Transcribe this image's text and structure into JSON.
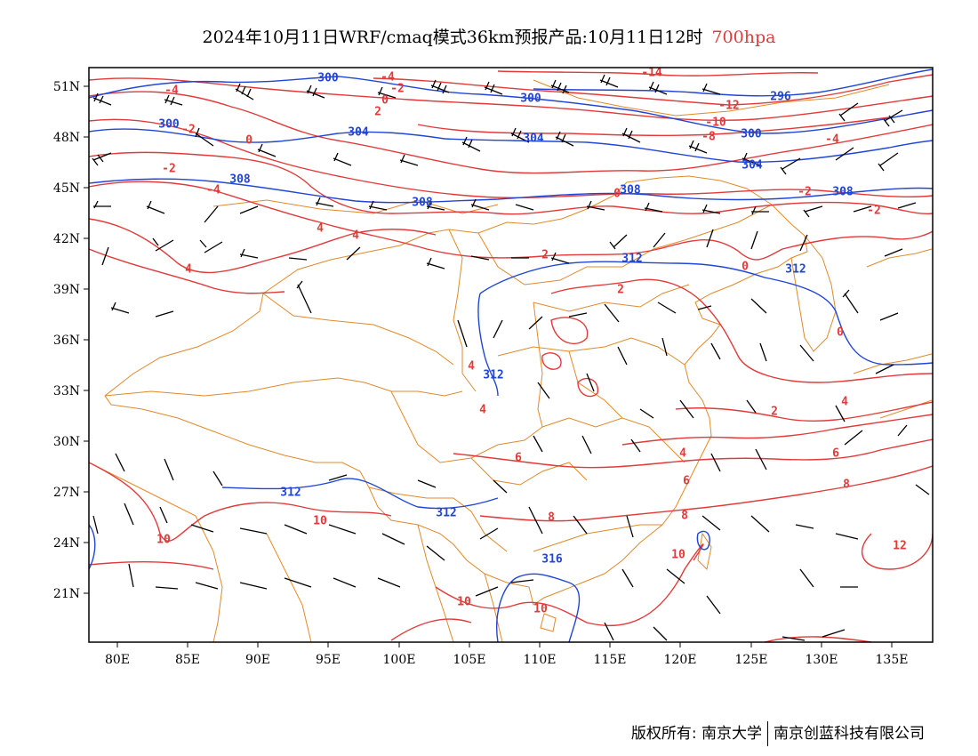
{
  "header": {
    "title": "2024年10月11日WRF/cmaq模式36km预报产品:10月11日12时",
    "level": "700hpa"
  },
  "colors": {
    "temperature": "#e23a3a",
    "height": "#2146d6",
    "boundary": "#e08a2a",
    "wind": "#000000"
  },
  "axes": {
    "lat_labels": [
      "51N",
      "48N",
      "45N",
      "42N",
      "39N",
      "36N",
      "33N",
      "30N",
      "27N",
      "24N",
      "21N"
    ],
    "lon_labels": [
      "80E",
      "85E",
      "90E",
      "95E",
      "100E",
      "105E",
      "110E",
      "115E",
      "120E",
      "125E",
      "130E",
      "135E"
    ]
  },
  "contour_labels": {
    "temperature": [
      "-14",
      "-12",
      "-10",
      "-8",
      "-4",
      "-2",
      "0",
      "2",
      "4",
      "6",
      "8",
      "10",
      "12"
    ],
    "height": [
      "296",
      "300",
      "304",
      "308",
      "312",
      "316"
    ]
  },
  "footer": {
    "left": "版权所有: 南京大学",
    "right": "南京创蓝科技有限公司"
  }
}
